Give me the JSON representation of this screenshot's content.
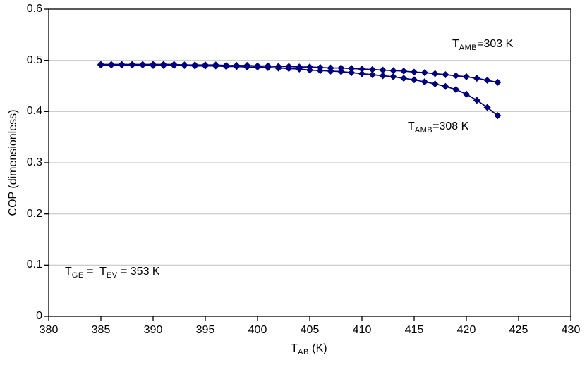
{
  "colors": {
    "series": "#000080",
    "gridline": "#c6c6c6",
    "axis": "#000000",
    "background": "#ffffff"
  },
  "axes": {
    "y_title": "COP (dimensionless)",
    "x_title": {
      "prefix": "T",
      "sub": "AB",
      "suffix": " (K)"
    }
  },
  "annotations": {
    "amb303": {
      "prefix": "T",
      "sub": "AMB",
      "suffix": "=303 K"
    },
    "amb308": {
      "prefix": "T",
      "sub": "AMB",
      "suffix": "=308 K"
    },
    "tge": {
      "t1": "T",
      "s1": "GE",
      "mid": " =  ",
      "t2": "T",
      "s2": "EV",
      "end": " = 353 K"
    }
  },
  "chart_data": {
    "type": "line",
    "title": "",
    "xlabel": "T_AB (K)",
    "ylabel": "COP (dimensionless)",
    "xlim": [
      380,
      430
    ],
    "ylim": [
      0,
      0.6
    ],
    "x_ticks": [
      380,
      385,
      390,
      395,
      400,
      405,
      410,
      415,
      420,
      425,
      430
    ],
    "y_ticks": [
      0,
      0.1,
      0.2,
      0.3,
      0.4,
      0.5,
      0.6
    ],
    "y_tick_labels": [
      "0",
      "0.1",
      "0.2",
      "0.3",
      "0.4",
      "0.5",
      "0.6"
    ],
    "grid": "horizontal",
    "legend_position": "none",
    "marker": "diamond",
    "x": [
      385,
      386,
      387,
      388,
      389,
      390,
      391,
      392,
      393,
      394,
      395,
      396,
      397,
      398,
      399,
      400,
      401,
      402,
      403,
      404,
      405,
      406,
      407,
      408,
      409,
      410,
      411,
      412,
      413,
      414,
      415,
      416,
      417,
      418,
      419,
      420,
      421,
      422,
      423
    ],
    "series": [
      {
        "name": "T_AMB=303 K",
        "color": "#000080",
        "values": [
          0.492,
          0.492,
          0.492,
          0.492,
          0.492,
          0.492,
          0.492,
          0.492,
          0.491,
          0.491,
          0.491,
          0.491,
          0.49,
          0.49,
          0.49,
          0.489,
          0.489,
          0.488,
          0.488,
          0.487,
          0.487,
          0.486,
          0.485,
          0.485,
          0.484,
          0.483,
          0.482,
          0.481,
          0.48,
          0.479,
          0.477,
          0.476,
          0.474,
          0.472,
          0.47,
          0.468,
          0.465,
          0.461,
          0.457
        ]
      },
      {
        "name": "T_AMB=308 K",
        "color": "#000080",
        "values": [
          0.491,
          0.491,
          0.491,
          0.491,
          0.491,
          0.49,
          0.49,
          0.49,
          0.49,
          0.489,
          0.489,
          0.489,
          0.488,
          0.488,
          0.487,
          0.487,
          0.486,
          0.485,
          0.484,
          0.483,
          0.481,
          0.48,
          0.479,
          0.478,
          0.476,
          0.474,
          0.472,
          0.47,
          0.468,
          0.465,
          0.462,
          0.458,
          0.454,
          0.449,
          0.443,
          0.434,
          0.422,
          0.408,
          0.392
        ]
      }
    ],
    "annotations": [
      "T_AMB=303 K",
      "T_AMB=308 K",
      "T_GE = T_EV = 353 K"
    ]
  }
}
